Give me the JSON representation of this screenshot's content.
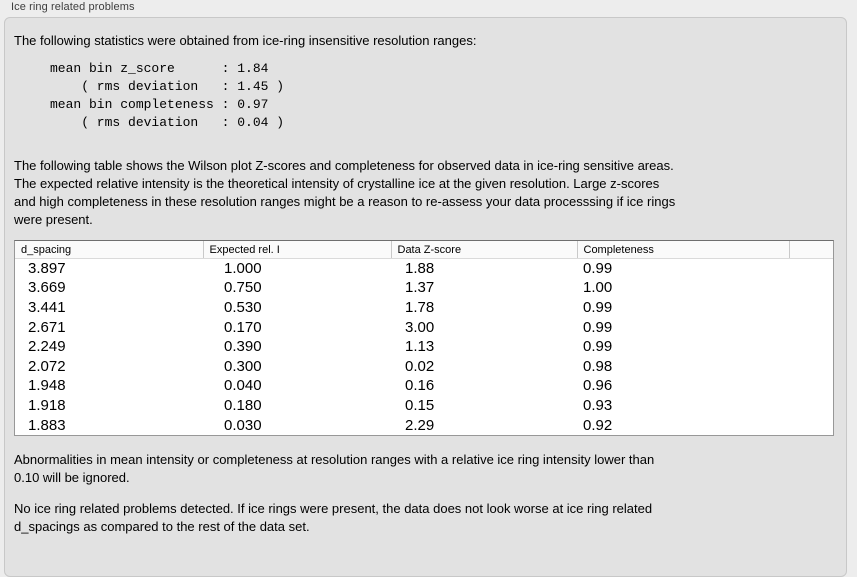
{
  "panel": {
    "title": "Ice ring related problems",
    "intro": "The following statistics were obtained from ice-ring insensitive resolution ranges:",
    "stats_block": "mean bin z_score      : 1.84\n    ( rms deviation   : 1.45 )\nmean bin completeness : 0.97\n    ( rms deviation   : 0.04 )",
    "table_description": "The following table shows the Wilson plot Z-scores and completeness for observed data in ice-ring sensitive areas.\nThe expected relative intensity is the theoretical intensity of crystalline ice at the given resolution. Large z-scores\nand high completeness in these resolution ranges might be a reason to re-assess your data processsing if ice rings\nwere present.",
    "note_abnormalities": "Abnormalities in mean intensity or completeness at resolution ranges with a relative ice ring intensity lower than\n0.10 will be ignored.",
    "conclusion": "No ice ring related problems detected. If ice rings were present, the data does not look worse at ice ring related\nd_spacings as compared to the rest of the data set."
  },
  "table": {
    "columns": [
      "d_spacing",
      "Expected rel. I",
      "Data Z-score",
      "Completeness"
    ],
    "rows": [
      [
        "3.897",
        "1.000",
        "1.88",
        "0.99"
      ],
      [
        "3.669",
        "0.750",
        "1.37",
        "1.00"
      ],
      [
        "3.441",
        "0.530",
        "1.78",
        "0.99"
      ],
      [
        "2.671",
        "0.170",
        "3.00",
        "0.99"
      ],
      [
        "2.249",
        "0.390",
        "1.13",
        "0.99"
      ],
      [
        "2.072",
        "0.300",
        "0.02",
        "0.98"
      ],
      [
        "1.948",
        "0.040",
        "0.16",
        "0.96"
      ],
      [
        "1.918",
        "0.180",
        "0.15",
        "0.93"
      ],
      [
        "1.883",
        "0.030",
        "2.29",
        "0.92"
      ]
    ]
  },
  "colors": {
    "window_background": "#ededed",
    "panel_background": "#e2e2e2",
    "panel_border": "#c8c8c8",
    "table_background": "#ffffff",
    "table_border": "#989898",
    "text": "#000000",
    "label_text": "#3e3e3e"
  }
}
